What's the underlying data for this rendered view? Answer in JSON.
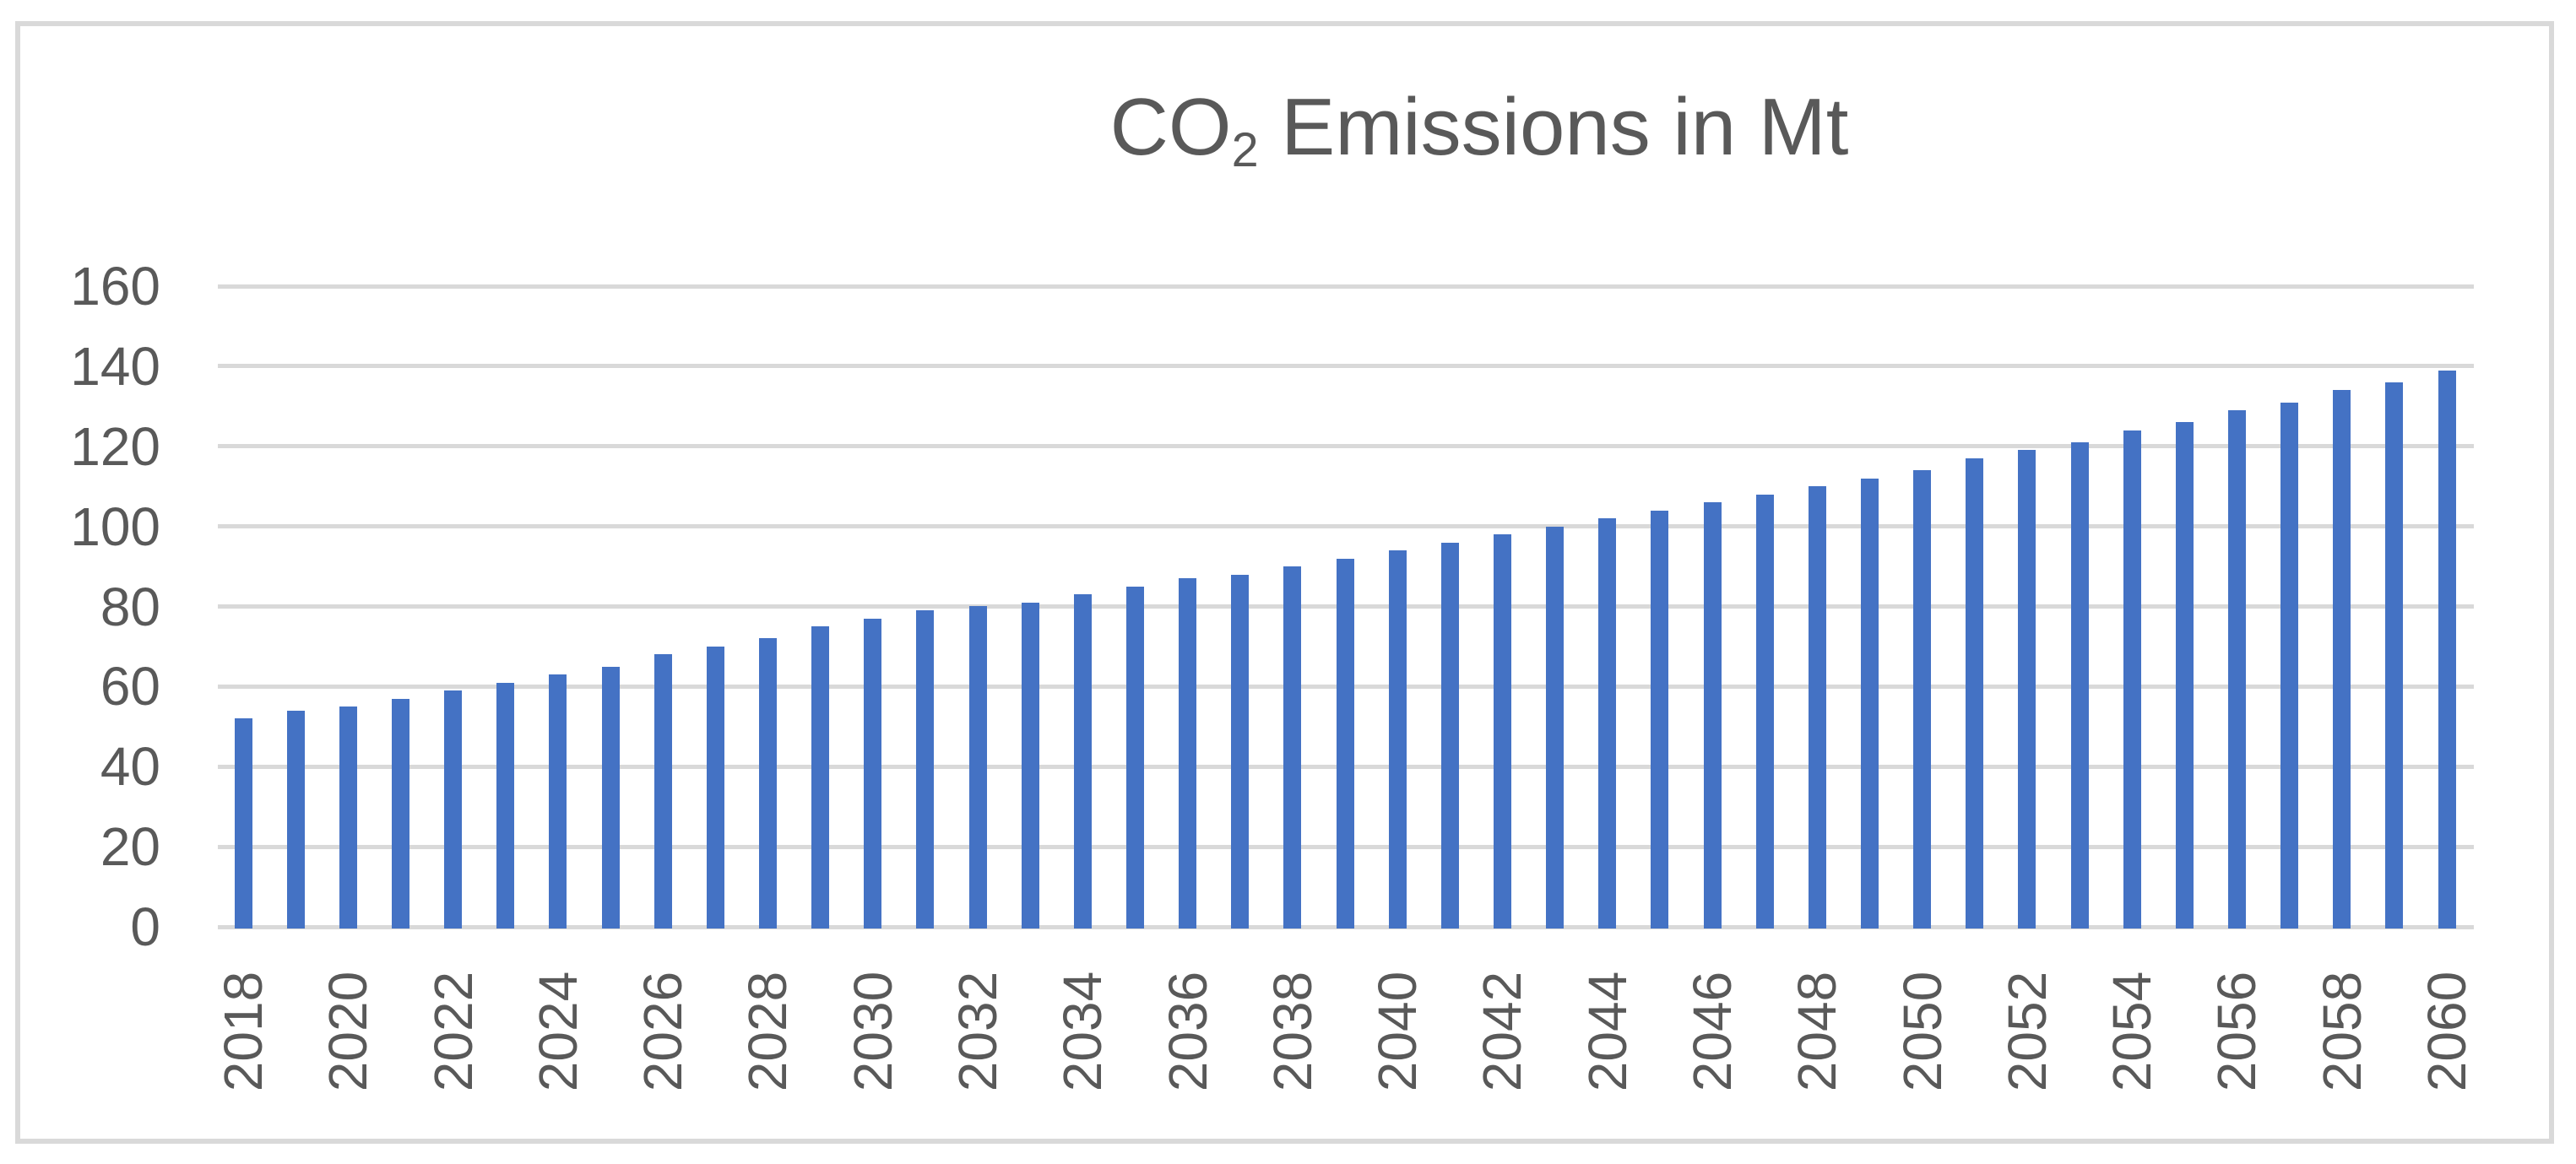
{
  "chart_data": {
    "type": "bar",
    "title": "CO2 Emissions in Mt",
    "title_parts": {
      "prefix": "CO",
      "subscript": "2",
      "suffix": " Emissions in Mt"
    },
    "xlabel": "",
    "ylabel": "",
    "categories": [
      "2018",
      "2019",
      "2020",
      "2021",
      "2022",
      "2023",
      "2024",
      "2025",
      "2026",
      "2027",
      "2028",
      "2029",
      "2030",
      "2031",
      "2032",
      "2033",
      "2034",
      "2035",
      "2036",
      "2037",
      "2038",
      "2039",
      "2040",
      "2041",
      "2042",
      "2043",
      "2044",
      "2045",
      "2046",
      "2047",
      "2048",
      "2049",
      "2050",
      "2051",
      "2052",
      "2053",
      "2054",
      "2055",
      "2056",
      "2057",
      "2058",
      "2059",
      "2060"
    ],
    "values": [
      52,
      54,
      55,
      57,
      59,
      61,
      63,
      65,
      68,
      70,
      72,
      75,
      77,
      79,
      80,
      81,
      83,
      85,
      87,
      88,
      90,
      92,
      94,
      96,
      98,
      100,
      102,
      104,
      106,
      108,
      110,
      112,
      114,
      117,
      119,
      121,
      124,
      126,
      129,
      131,
      134,
      136,
      139
    ],
    "x_tick_labels": [
      "2018",
      "2020",
      "2022",
      "2024",
      "2026",
      "2028",
      "2030",
      "2032",
      "2034",
      "2036",
      "2038",
      "2040",
      "2042",
      "2044",
      "2046",
      "2048",
      "2050",
      "2052",
      "2054",
      "2056",
      "2058",
      "2060"
    ],
    "x_tick_interval": 2,
    "y_ticks": [
      0,
      20,
      40,
      60,
      80,
      100,
      120,
      140,
      160
    ],
    "ylim": [
      0,
      160
    ],
    "grid": true,
    "legend": "none",
    "colors": {
      "bar": "#4472C4",
      "gridline": "#D9D9D9",
      "frame": "#D9D9D9",
      "text": "#595959",
      "background": "#FFFFFF"
    }
  }
}
